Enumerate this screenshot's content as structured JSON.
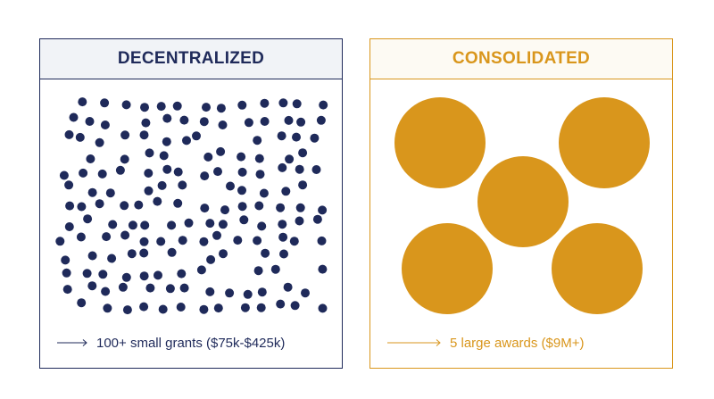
{
  "panels": {
    "decentralized": {
      "title": "DECENTRALIZED",
      "caption": "100+ small grants ($75k-$425k)",
      "color": "#1f2a5a",
      "mark": "small-dot",
      "count": 170
    },
    "consolidated": {
      "title": "CONSOLIDATED",
      "caption": "5 large awards ($9M+)",
      "color": "#d9961c",
      "mark": "large-circle",
      "count": 5
    }
  }
}
